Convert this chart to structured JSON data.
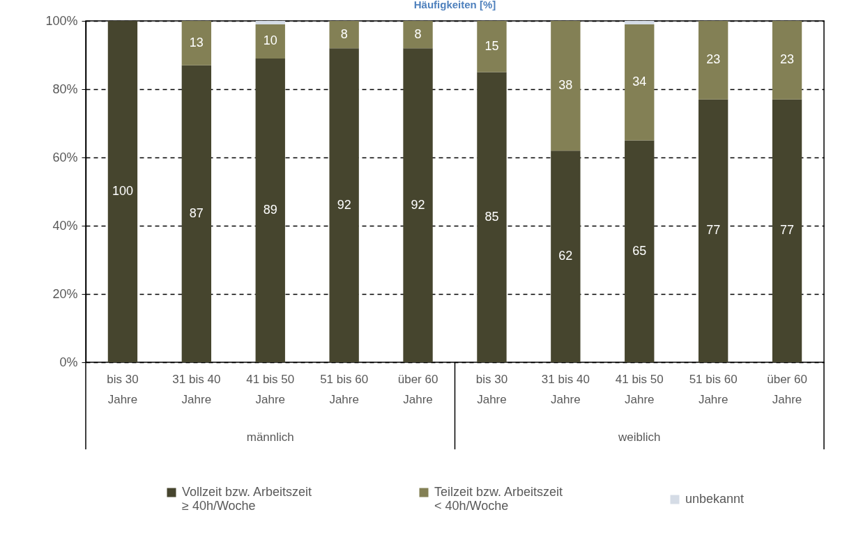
{
  "chart_data": {
    "type": "bar",
    "title": "Häufigkeiten [%]",
    "categories": [
      "bis 30 Jahre",
      "31 bis 40 Jahre",
      "41 bis 50 Jahre",
      "51 bis 60 Jahre",
      "über 60 Jahre",
      "bis 30 Jahre",
      "31 bis 40 Jahre",
      "41 bis 50 Jahre",
      "51 bis 60 Jahre",
      "über 60 Jahre"
    ],
    "series": [
      {
        "name": "Vollzeit bzw. Arbeitszeit ≥ 40h/Woche",
        "color": "#46452e",
        "values": [
          100,
          87,
          89,
          92,
          92,
          85,
          62,
          65,
          77,
          77
        ],
        "value_labels": [
          "100",
          "87",
          "89",
          "92",
          "92",
          "85",
          "62",
          "65",
          "77",
          "77"
        ]
      },
      {
        "name": "Teilzeit bzw. Arbeitszeit < 40h/Woche",
        "color": "#838055",
        "values": [
          null,
          13,
          10,
          8,
          8,
          15,
          38,
          34,
          23,
          23
        ],
        "value_labels": [
          null,
          "13",
          "10",
          "8",
          "8",
          "15",
          "38",
          "34",
          "23",
          "23"
        ]
      },
      {
        "name": "unbekannt",
        "color": "#d5dce6",
        "values": [
          null,
          null,
          1,
          null,
          null,
          null,
          null,
          1,
          null,
          null
        ]
      }
    ],
    "stacked": true,
    "ylim": [
      0,
      100
    ],
    "yticks": [
      {
        "value": 0,
        "label": "0%"
      },
      {
        "value": 20,
        "label": "20%"
      },
      {
        "value": 40,
        "label": "40%"
      },
      {
        "value": 60,
        "label": "60%"
      },
      {
        "value": 80,
        "label": "80%"
      },
      {
        "value": 100,
        "label": "100%"
      }
    ],
    "grid": "y",
    "legend": "bottom",
    "annotations": [
      "männlich",
      "weiblich"
    ]
  }
}
